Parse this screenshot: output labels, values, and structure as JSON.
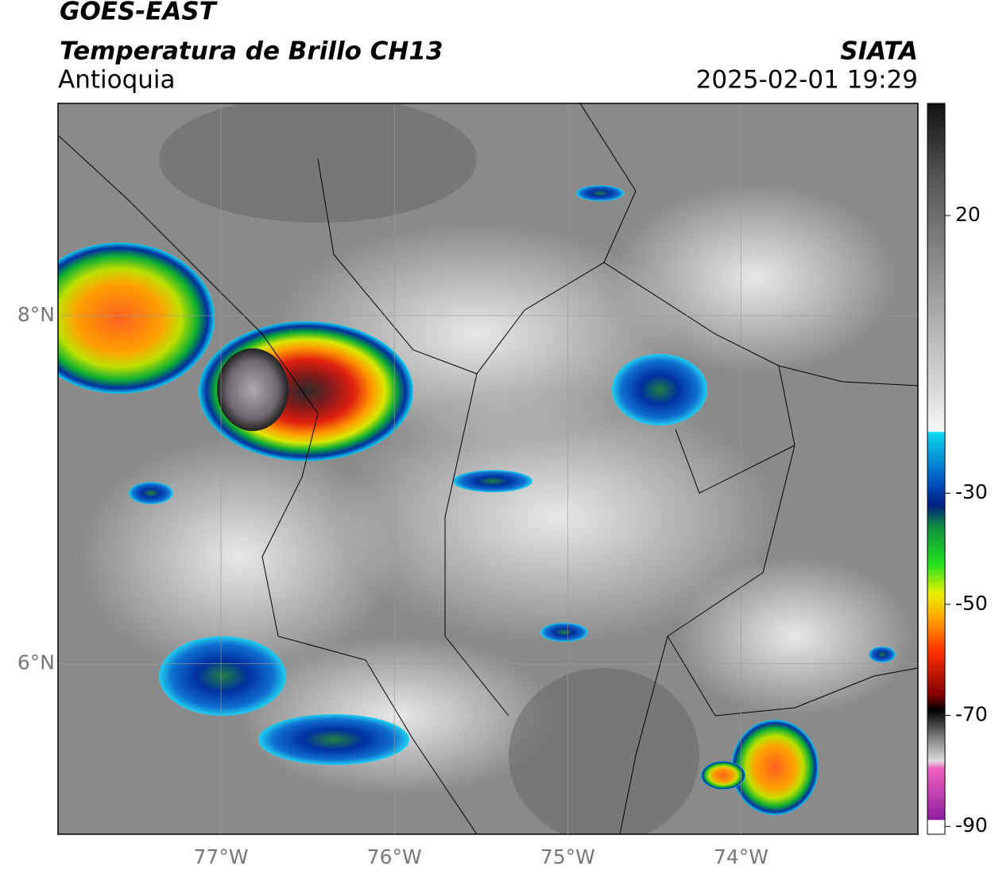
{
  "header": {
    "title": "GOES-EAST",
    "subtitle": "Temperatura de Brillo CH13",
    "region": "Antioquia",
    "source": "SIATA",
    "datetime": "2025-02-01 19:29"
  },
  "map": {
    "lonlim": [
      -77.94,
      -72.98
    ],
    "latlim": [
      5.02,
      9.22
    ],
    "lon_ticks": [
      {
        "value": -77,
        "label": "77°W"
      },
      {
        "value": -76,
        "label": "76°W"
      },
      {
        "value": -75,
        "label": "75°W"
      },
      {
        "value": -74,
        "label": "74°W"
      }
    ],
    "lat_ticks": [
      {
        "value": 8,
        "label": "8°N"
      },
      {
        "value": 6,
        "label": "6°N"
      }
    ]
  },
  "colorbar": {
    "lim": [
      -91.4,
      40.2
    ],
    "ticks": [
      20,
      -30,
      -50,
      -70,
      -90
    ]
  }
}
